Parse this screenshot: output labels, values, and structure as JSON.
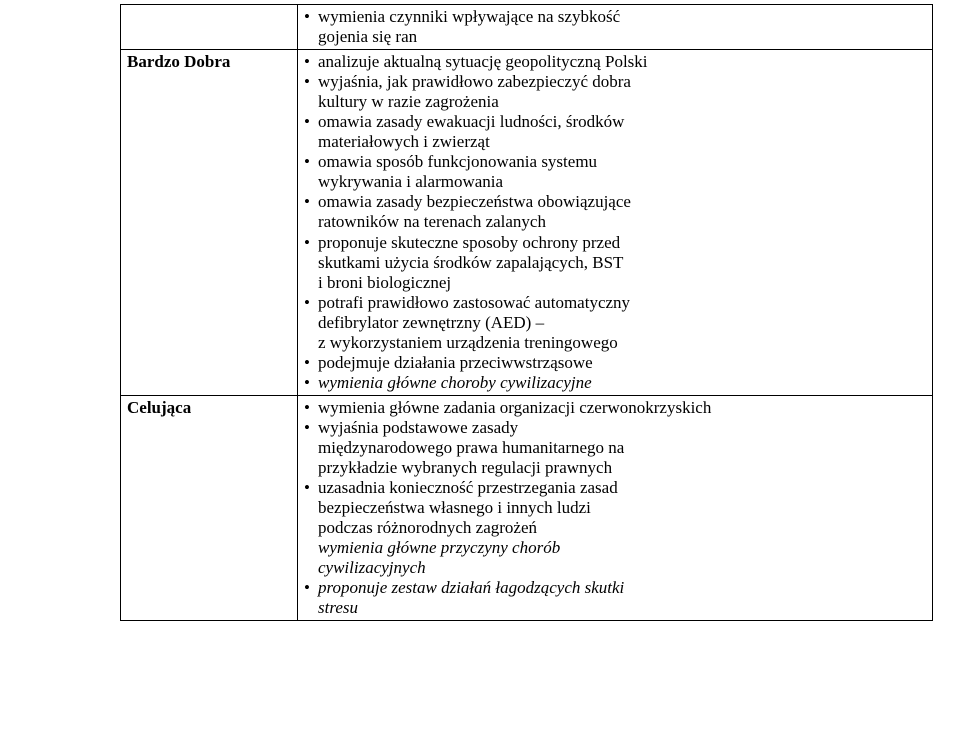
{
  "table": {
    "border_color": "#000000",
    "background_color": "#ffffff",
    "font_family": "Times New Roman",
    "base_font_size_pt": 13,
    "rows": [
      {
        "grade": "",
        "items": [
          {
            "text": "wymienia czynniki wpływające na szybkość",
            "style": "normal"
          },
          {
            "text": "gojenia się ran",
            "style": "normal",
            "continuation": true
          }
        ]
      },
      {
        "grade": "Bardzo Dobra",
        "items": [
          {
            "text": "analizuje aktualną sytuację geopolityczną Polski",
            "style": "normal"
          },
          {
            "text": "wyjaśnia, jak prawidłowo zabezpieczyć dobra",
            "style": "normal"
          },
          {
            "text": "kultury w razie zagrożenia",
            "style": "normal",
            "continuation": true
          },
          {
            "text": "omawia zasady ewakuacji ludności, środków",
            "style": "normal"
          },
          {
            "text": "materiałowych i zwierząt",
            "style": "normal",
            "continuation": true
          },
          {
            "text": "omawia sposób funkcjonowania systemu",
            "style": "normal"
          },
          {
            "text": "wykrywania i alarmowania",
            "style": "normal",
            "continuation": true
          },
          {
            "text": "omawia zasady bezpieczeństwa obowiązujące",
            "style": "normal"
          },
          {
            "text": "ratowników na terenach zalanych",
            "style": "normal",
            "continuation": true
          },
          {
            "text": "proponuje skuteczne sposoby ochrony przed",
            "style": "normal"
          },
          {
            "text": "skutkami użycia środków zapalających, BST",
            "style": "normal",
            "continuation": true
          },
          {
            "text": "i broni biologicznej",
            "style": "normal",
            "continuation": true
          },
          {
            "text": "potrafi prawidłowo zastosować automatyczny",
            "style": "normal"
          },
          {
            "text": "defibrylator zewnętrzny (AED) –",
            "style": "normal",
            "continuation": true
          },
          {
            "text": "z wykorzystaniem urządzenia treningowego",
            "style": "normal",
            "continuation": true
          },
          {
            "text": "podejmuje działania przeciwwstrząsowe",
            "style": "normal"
          },
          {
            "text": "wymienia główne choroby cywilizacyjne",
            "style": "italic"
          }
        ]
      },
      {
        "grade": "Celująca",
        "items": [
          {
            "text": "wymienia  główne zadania organizacji czerwonokrzyskich",
            "style": "normal"
          },
          {
            "text": "wyjaśnia podstawowe zasady",
            "style": "normal"
          },
          {
            "text": "międzynarodowego prawa humanitarnego na",
            "style": "normal",
            "continuation": true
          },
          {
            "text": "przykładzie wybranych regulacji prawnych",
            "style": "normal",
            "continuation": true
          },
          {
            "text": "uzasadnia konieczność przestrzegania zasad",
            "style": "normal"
          },
          {
            "text": "bezpieczeństwa własnego i innych ludzi",
            "style": "normal",
            "continuation": true
          },
          {
            "text": "podczas różnorodnych zagrożeń",
            "style": "normal",
            "continuation": true
          },
          {
            "text": "wymienia główne przyczyny chorób",
            "style": "italic",
            "continuation": true
          },
          {
            "text": "cywilizacyjnych",
            "style": "italic",
            "continuation": true
          },
          {
            "text": "proponuje zestaw działań łagodzących skutki",
            "style": "italic"
          },
          {
            "text": "stresu",
            "style": "italic",
            "continuation": true
          }
        ]
      }
    ]
  }
}
